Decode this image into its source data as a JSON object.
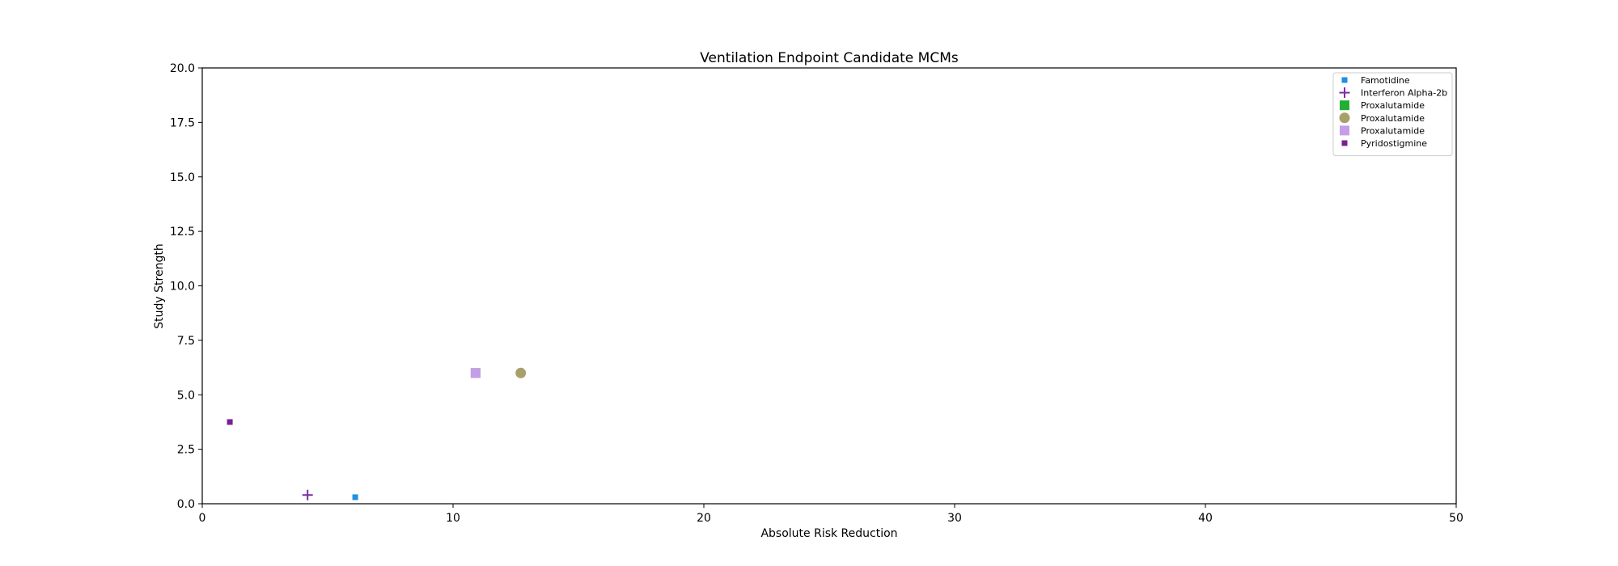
{
  "chart_data": {
    "type": "scatter",
    "title": "Ventilation Endpoint Candidate MCMs",
    "xlabel": "Absolute Risk Reduction",
    "ylabel": "Study Strength",
    "xlim": [
      0,
      50
    ],
    "ylim": [
      0,
      20
    ],
    "xticks": [
      0,
      10,
      20,
      30,
      40,
      50
    ],
    "yticks": [
      0.0,
      2.5,
      5.0,
      7.5,
      10.0,
      12.5,
      15.0,
      17.5,
      20.0
    ],
    "xtick_labels": [
      "0",
      "10",
      "20",
      "30",
      "40",
      "50"
    ],
    "ytick_labels": [
      "0.0",
      "2.5",
      "5.0",
      "7.5",
      "10.0",
      "12.5",
      "15.0",
      "17.5",
      "20.0"
    ],
    "grid": false,
    "legend_position": "top-right",
    "series": [
      {
        "name": "Famotidine",
        "marker": "square-small",
        "color": "#1f8fe0",
        "points": [
          {
            "x": 6.1,
            "y": 0.3
          }
        ]
      },
      {
        "name": "Interferon Alpha-2b",
        "marker": "plus",
        "color": "#7b2ea6",
        "points": [
          {
            "x": 4.2,
            "y": 0.4
          }
        ]
      },
      {
        "name": "Proxalutamide",
        "marker": "square",
        "color": "#22b034",
        "points": [
          {
            "x": 10.9,
            "y": 6.0
          }
        ]
      },
      {
        "name": "Proxalutamide",
        "marker": "circle",
        "color": "#a89f6a",
        "points": [
          {
            "x": 12.7,
            "y": 6.0
          }
        ]
      },
      {
        "name": "Proxalutamide",
        "marker": "square",
        "color": "#c69de8",
        "points": [
          {
            "x": 10.9,
            "y": 6.0
          }
        ]
      },
      {
        "name": "Pyridostigmine",
        "marker": "square-small",
        "color": "#7b1f8f",
        "points": [
          {
            "x": 1.1,
            "y": 3.75
          }
        ]
      }
    ]
  }
}
